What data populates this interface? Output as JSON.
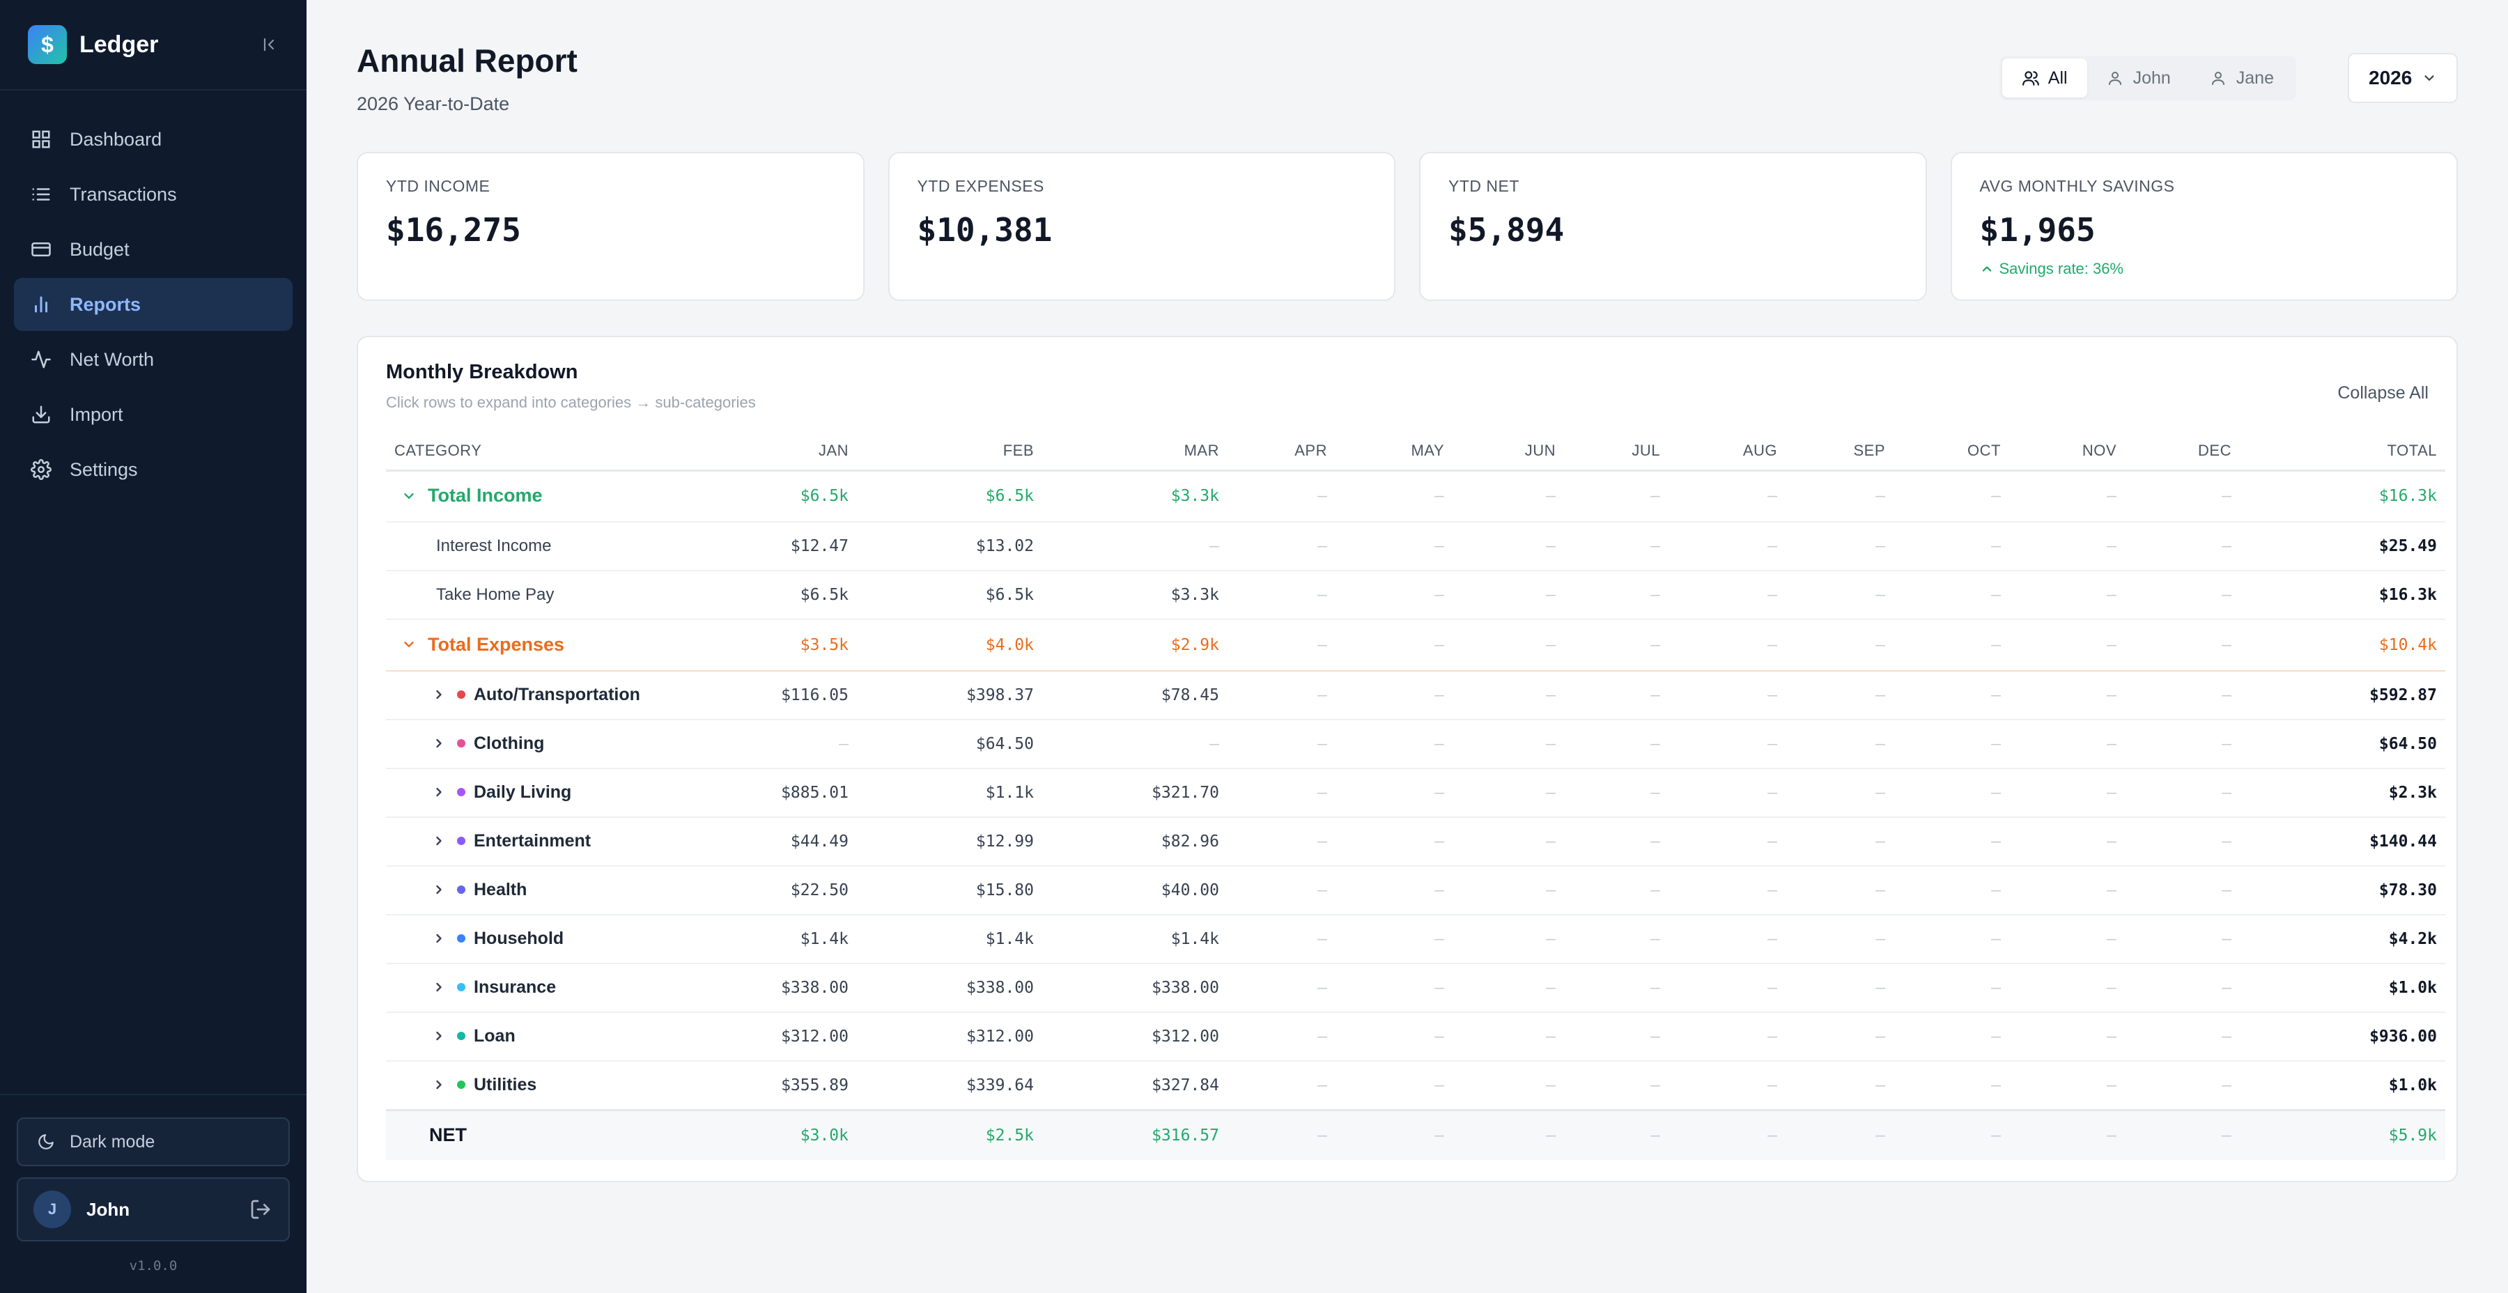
{
  "app": {
    "name": "Ledger",
    "logo_glyph": "$",
    "version": "v1.0.0"
  },
  "sidebar": {
    "items": [
      {
        "label": "Dashboard",
        "icon": "grid-icon",
        "active": false
      },
      {
        "label": "Transactions",
        "icon": "list-icon",
        "active": false
      },
      {
        "label": "Budget",
        "icon": "card-icon",
        "active": false
      },
      {
        "label": "Reports",
        "icon": "bar-chart-icon",
        "active": true
      },
      {
        "label": "Net Worth",
        "icon": "activity-icon",
        "active": false
      },
      {
        "label": "Import",
        "icon": "download-icon",
        "active": false
      },
      {
        "label": "Settings",
        "icon": "gear-icon",
        "active": false
      }
    ],
    "dark_mode_label": "Dark mode",
    "user": {
      "initial": "J",
      "name": "John"
    }
  },
  "header": {
    "title": "Annual Report",
    "subtitle": "2026 Year-to-Date",
    "filters": [
      {
        "label": "All",
        "active": true
      },
      {
        "label": "John",
        "active": false
      },
      {
        "label": "Jane",
        "active": false
      }
    ],
    "year": "2026"
  },
  "cards": [
    {
      "label": "YTD INCOME",
      "value": "$16,275"
    },
    {
      "label": "YTD EXPENSES",
      "value": "$10,381"
    },
    {
      "label": "YTD NET",
      "value": "$5,894"
    },
    {
      "label": "AVG MONTHLY SAVINGS",
      "value": "$1,965",
      "note": "Savings rate: 36%"
    }
  ],
  "breakdown": {
    "title": "Monthly Breakdown",
    "subtitle": "Click rows to expand into categories → sub-categories",
    "collapse_label": "Collapse All",
    "columns": [
      "CATEGORY",
      "JAN",
      "FEB",
      "MAR",
      "APR",
      "MAY",
      "JUN",
      "JUL",
      "AUG",
      "SEP",
      "OCT",
      "NOV",
      "DEC",
      "TOTAL"
    ],
    "dash": "—",
    "rows": [
      {
        "type": "income",
        "label": "Total Income",
        "values": [
          "$6.5k",
          "$6.5k",
          "$3.3k",
          "—",
          "—",
          "—",
          "—",
          "—",
          "—",
          "—",
          "—",
          "—"
        ],
        "total": "$16.3k"
      },
      {
        "type": "sub",
        "label": "Interest Income",
        "values": [
          "$12.47",
          "$13.02",
          "—",
          "—",
          "—",
          "—",
          "—",
          "—",
          "—",
          "—",
          "—",
          "—"
        ],
        "total": "$25.49"
      },
      {
        "type": "sub",
        "label": "Take Home Pay",
        "values": [
          "$6.5k",
          "$6.5k",
          "$3.3k",
          "—",
          "—",
          "—",
          "—",
          "—",
          "—",
          "—",
          "—",
          "—"
        ],
        "total": "$16.3k"
      },
      {
        "type": "expense",
        "label": "Total Expenses",
        "values": [
          "$3.5k",
          "$4.0k",
          "$2.9k",
          "—",
          "—",
          "—",
          "—",
          "—",
          "—",
          "—",
          "—",
          "—"
        ],
        "total": "$10.4k"
      },
      {
        "type": "cat",
        "label": "Auto/Transportation",
        "color": "#e5484d",
        "values": [
          "$116.05",
          "$398.37",
          "$78.45",
          "—",
          "—",
          "—",
          "—",
          "—",
          "—",
          "—",
          "—",
          "—"
        ],
        "total": "$592.87"
      },
      {
        "type": "cat",
        "label": "Clothing",
        "color": "#e5509a",
        "values": [
          "—",
          "$64.50",
          "—",
          "—",
          "—",
          "—",
          "—",
          "—",
          "—",
          "—",
          "—",
          "—"
        ],
        "total": "$64.50"
      },
      {
        "type": "cat",
        "label": "Daily Living",
        "color": "#a855f7",
        "values": [
          "$885.01",
          "$1.1k",
          "$321.70",
          "—",
          "—",
          "—",
          "—",
          "—",
          "—",
          "—",
          "—",
          "—"
        ],
        "total": "$2.3k"
      },
      {
        "type": "cat",
        "label": "Entertainment",
        "color": "#8b5cf6",
        "values": [
          "$44.49",
          "$12.99",
          "$82.96",
          "—",
          "—",
          "—",
          "—",
          "—",
          "—",
          "—",
          "—",
          "—"
        ],
        "total": "$140.44"
      },
      {
        "type": "cat",
        "label": "Health",
        "color": "#6366f1",
        "values": [
          "$22.50",
          "$15.80",
          "$40.00",
          "—",
          "—",
          "—",
          "—",
          "—",
          "—",
          "—",
          "—",
          "—"
        ],
        "total": "$78.30"
      },
      {
        "type": "cat",
        "label": "Household",
        "color": "#3b82f6",
        "values": [
          "$1.4k",
          "$1.4k",
          "$1.4k",
          "—",
          "—",
          "—",
          "—",
          "—",
          "—",
          "—",
          "—",
          "—"
        ],
        "total": "$4.2k"
      },
      {
        "type": "cat",
        "label": "Insurance",
        "color": "#38bdf8",
        "values": [
          "$338.00",
          "$338.00",
          "$338.00",
          "—",
          "—",
          "—",
          "—",
          "—",
          "—",
          "—",
          "—",
          "—"
        ],
        "total": "$1.0k"
      },
      {
        "type": "cat",
        "label": "Loan",
        "color": "#14b8a6",
        "values": [
          "$312.00",
          "$312.00",
          "$312.00",
          "—",
          "—",
          "—",
          "—",
          "—",
          "—",
          "—",
          "—",
          "—"
        ],
        "total": "$936.00"
      },
      {
        "type": "cat",
        "label": "Utilities",
        "color": "#22c55e",
        "values": [
          "$355.89",
          "$339.64",
          "$327.84",
          "—",
          "—",
          "—",
          "—",
          "—",
          "—",
          "—",
          "—",
          "—"
        ],
        "total": "$1.0k"
      },
      {
        "type": "net",
        "label": "NET",
        "values": [
          "$3.0k",
          "$2.5k",
          "$316.57",
          "—",
          "—",
          "—",
          "—",
          "—",
          "—",
          "—",
          "—",
          "—"
        ],
        "total": "$5.9k"
      }
    ]
  },
  "colors": {
    "accent": "#8fb8ff",
    "income": "#22a96b",
    "expense": "#ea6c1c",
    "sidebar_bg": "#0f1b2d"
  }
}
